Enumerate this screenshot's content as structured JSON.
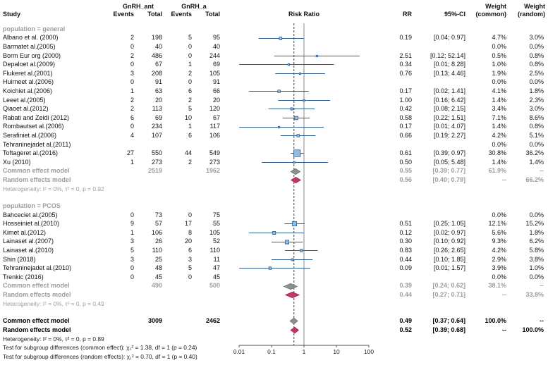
{
  "header": {
    "study": "Study",
    "group1": "GnRH_ant",
    "group2": "GnRH_a",
    "events": "Events",
    "total": "Total",
    "plot_title": "Risk Ratio",
    "rr": "RR",
    "ci": "95%-CI",
    "weight_top": "Weight",
    "weight_common": "(common)",
    "weight_random": "(random)"
  },
  "chart_data": {
    "type": "forest",
    "effect_measure": "Risk Ratio",
    "x_scale": "log10",
    "x_ticks": [
      "0.01",
      "0.1",
      "1",
      "10",
      "100"
    ],
    "x_range": [
      0.01,
      100
    ],
    "null_line": 1,
    "overall_line": 0.49,
    "colors": {
      "marker_fill": "#93bcdd",
      "marker_stroke": "#2d5c8f",
      "ci_line": "#2d5c8f",
      "diamond_common": "#8d9093",
      "diamond_common_stroke": "#6f7275",
      "diamond_random": "#c13866",
      "diamond_random_stroke": "#9d2750",
      "null_line": "#8a8a8a",
      "dashed_line": "#444444",
      "axis": "#555555",
      "muted_text": "#9d9d9d"
    },
    "groups": [
      {
        "label": "population = general",
        "studies": [
          {
            "name": "Albano et al. (2000)",
            "e1": "2",
            "n1": "198",
            "e2": "5",
            "n2": "95",
            "rr": 0.19,
            "lo": 0.04,
            "hi": 0.97,
            "rr_text": "0.19",
            "ci_text": "[0.04; 0.97]",
            "w_common": "4.7%",
            "w_random": "3.0%"
          },
          {
            "name": "Barmatet al.(2005)",
            "e1": "0",
            "n1": "40",
            "e2": "0",
            "n2": "40",
            "rr": null,
            "lo": null,
            "hi": null,
            "rr_text": "",
            "ci_text": "",
            "w_common": "0.0%",
            "w_random": "0.0%"
          },
          {
            "name": "Borm Eur org (2000)",
            "e1": "2",
            "n1": "486",
            "e2": "0",
            "n2": "244",
            "rr": 2.51,
            "lo": 0.12,
            "hi": 52.14,
            "rr_text": "2.51",
            "ci_text": "[0.12; 52.14]",
            "w_common": "0.5%",
            "w_random": "0.8%"
          },
          {
            "name": "Depaloet al.(2009)",
            "e1": "0",
            "n1": "67",
            "e2": "1",
            "n2": "69",
            "rr": 0.34,
            "lo": 0.01,
            "hi": 8.28,
            "rr_text": "0.34",
            "ci_text": "[0.01; 8.28]",
            "w_common": "1.0%",
            "w_random": "0.8%"
          },
          {
            "name": "Flukeret al.(2001)",
            "e1": "3",
            "n1": "208",
            "e2": "2",
            "n2": "105",
            "rr": 0.76,
            "lo": 0.13,
            "hi": 4.46,
            "rr_text": "0.76",
            "ci_text": "[0.13; 4.46]",
            "w_common": "1.9%",
            "w_random": "2.5%"
          },
          {
            "name": "Huirneet al.(2006)",
            "e1": "0",
            "n1": "91",
            "e2": "0",
            "n2": "91",
            "rr": null,
            "lo": null,
            "hi": null,
            "rr_text": "",
            "ci_text": "",
            "w_common": "0.0%",
            "w_random": "0.0%"
          },
          {
            "name": "Koichiet al.(2006)",
            "e1": "1",
            "n1": "63",
            "e2": "6",
            "n2": "66",
            "rr": 0.17,
            "lo": 0.02,
            "hi": 1.41,
            "rr_text": "0.17",
            "ci_text": "[0.02; 1.41]",
            "w_common": "4.1%",
            "w_random": "1.8%"
          },
          {
            "name": "Leeet al.(2005)",
            "e1": "2",
            "n1": "20",
            "e2": "2",
            "n2": "20",
            "rr": 1.0,
            "lo": 0.16,
            "hi": 6.42,
            "rr_text": "1.00",
            "ci_text": "[0.16; 6.42]",
            "w_common": "1.4%",
            "w_random": "2.3%"
          },
          {
            "name": "Qiaoet al.(2012)",
            "e1": "2",
            "n1": "113",
            "e2": "5",
            "n2": "120",
            "rr": 0.42,
            "lo": 0.08,
            "hi": 2.15,
            "rr_text": "0.42",
            "ci_text": "[0.08; 2.15]",
            "w_common": "3.4%",
            "w_random": "3.0%"
          },
          {
            "name": "Rabati and Zeidi (2012)",
            "e1": "6",
            "n1": "69",
            "e2": "10",
            "n2": "67",
            "rr": 0.58,
            "lo": 0.22,
            "hi": 1.51,
            "rr_text": "0.58",
            "ci_text": "[0.22; 1.51]",
            "w_common": "7.1%",
            "w_random": "8.6%"
          },
          {
            "name": "Rombautset al.(2006)",
            "e1": "0",
            "n1": "234",
            "e2": "1",
            "n2": "117",
            "rr": 0.17,
            "lo": 0.01,
            "hi": 4.07,
            "rr_text": "0.17",
            "ci_text": "[0.01; 4.07]",
            "w_common": "1.4%",
            "w_random": "0.8%"
          },
          {
            "name": "Serafiniet al.(2006)",
            "e1": "4",
            "n1": "107",
            "e2": "6",
            "n2": "106",
            "rr": 0.66,
            "lo": 0.19,
            "hi": 2.27,
            "rr_text": "0.66",
            "ci_text": "[0.19; 2.27]",
            "w_common": "4.2%",
            "w_random": "5.1%"
          },
          {
            "name": "Tehraninejadet al.(2011)",
            "e1": "",
            "n1": "",
            "e2": "",
            "n2": "",
            "rr": null,
            "lo": null,
            "hi": null,
            "rr_text": "",
            "ci_text": "",
            "w_common": "0.0%",
            "w_random": "0.0%"
          },
          {
            "name": "Toftageret al.(2016)",
            "e1": "27",
            "n1": "550",
            "e2": "44",
            "n2": "549",
            "rr": 0.61,
            "lo": 0.39,
            "hi": 0.97,
            "rr_text": "0.61",
            "ci_text": "[0.39; 0.97]",
            "w_common": "30.8%",
            "w_random": "36.2%"
          },
          {
            "name": "Xu (2010)",
            "e1": "1",
            "n1": "273",
            "e2": "2",
            "n2": "273",
            "rr": 0.5,
            "lo": 0.05,
            "hi": 5.48,
            "rr_text": "0.50",
            "ci_text": "[0.05; 5.48]",
            "w_common": "1.4%",
            "w_random": "1.4%"
          }
        ],
        "common": {
          "label": "Common effect model",
          "n1": "2519",
          "n2": "1962",
          "rr": 0.55,
          "lo": 0.39,
          "hi": 0.77,
          "rr_text": "0.55",
          "ci_text": "[0.39; 0.77]",
          "w_common": "61.9%",
          "w_random": "--"
        },
        "random": {
          "label": "Random effects model",
          "n1": "",
          "n2": "",
          "rr": 0.56,
          "lo": 0.4,
          "hi": 0.79,
          "rr_text": "0.56",
          "ci_text": "[0.40; 0.79]",
          "w_common": "--",
          "w_random": "66.2%"
        },
        "heterogeneity": "Heterogeneity: I² = 0%, τ² = 0, p = 0.92"
      },
      {
        "label": "population = PCOS",
        "studies": [
          {
            "name": "Bahceciet al.(2005)",
            "e1": "0",
            "n1": "73",
            "e2": "0",
            "n2": "75",
            "rr": null,
            "lo": null,
            "hi": null,
            "rr_text": "",
            "ci_text": "",
            "w_common": "0.0%",
            "w_random": "0.0%"
          },
          {
            "name": "Hosseiniet al.(2010)",
            "e1": "9",
            "n1": "57",
            "e2": "17",
            "n2": "55",
            "rr": 0.51,
            "lo": 0.25,
            "hi": 1.05,
            "rr_text": "0.51",
            "ci_text": "[0.25; 1.05]",
            "w_common": "12.1%",
            "w_random": "15.2%"
          },
          {
            "name": "Kimet al.(2012)",
            "e1": "1",
            "n1": "106",
            "e2": "8",
            "n2": "105",
            "rr": 0.12,
            "lo": 0.02,
            "hi": 0.97,
            "rr_text": "0.12",
            "ci_text": "[0.02; 0.97]",
            "w_common": "5.6%",
            "w_random": "1.8%"
          },
          {
            "name": "Lainaset al.(2007)",
            "e1": "3",
            "n1": "26",
            "e2": "20",
            "n2": "52",
            "rr": 0.3,
            "lo": 0.1,
            "hi": 0.92,
            "rr_text": "0.30",
            "ci_text": "[0.10; 0.92]",
            "w_common": "9.3%",
            "w_random": "6.2%"
          },
          {
            "name": "Lainaset al.(2010)",
            "e1": "5",
            "n1": "110",
            "e2": "6",
            "n2": "110",
            "rr": 0.83,
            "lo": 0.26,
            "hi": 2.65,
            "rr_text": "0.83",
            "ci_text": "[0.26; 2.65]",
            "w_common": "4.2%",
            "w_random": "5.8%"
          },
          {
            "name": "Shin (2018)",
            "e1": "3",
            "n1": "25",
            "e2": "3",
            "n2": "11",
            "rr": 0.44,
            "lo": 0.1,
            "hi": 1.85,
            "rr_text": "0.44",
            "ci_text": "[0.10; 1.85]",
            "w_common": "2.9%",
            "w_random": "3.8%"
          },
          {
            "name": "Tehraninejadet al.(2010)",
            "e1": "0",
            "n1": "48",
            "e2": "5",
            "n2": "47",
            "rr": 0.09,
            "lo": 0.01,
            "hi": 1.57,
            "rr_text": "0.09",
            "ci_text": "[0.01; 1.57]",
            "w_common": "3.9%",
            "w_random": "1.0%"
          },
          {
            "name": "Trenkic (2016)",
            "e1": "0",
            "n1": "45",
            "e2": "0",
            "n2": "45",
            "rr": null,
            "lo": null,
            "hi": null,
            "rr_text": "",
            "ci_text": "",
            "w_common": "0.0%",
            "w_random": "0.0%"
          }
        ],
        "common": {
          "label": "Common effect model",
          "n1": "490",
          "n2": "500",
          "rr": 0.39,
          "lo": 0.24,
          "hi": 0.62,
          "rr_text": "0.39",
          "ci_text": "[0.24; 0.62]",
          "w_common": "38.1%",
          "w_random": "--"
        },
        "random": {
          "label": "Random effects model",
          "n1": "",
          "n2": "",
          "rr": 0.44,
          "lo": 0.27,
          "hi": 0.71,
          "rr_text": "0.44",
          "ci_text": "[0.27; 0.71]",
          "w_common": "--",
          "w_random": "33.8%"
        },
        "heterogeneity": "Heterogeneity: I² = 0%, τ² = 0, p = 0.49"
      }
    ],
    "overall": {
      "common": {
        "label": "Common effect model",
        "n1": "3009",
        "n2": "2462",
        "rr": 0.49,
        "lo": 0.37,
        "hi": 0.64,
        "rr_text": "0.49",
        "ci_text": "[0.37; 0.64]",
        "w_common": "100.0%",
        "w_random": "--"
      },
      "random": {
        "label": "Random effects model",
        "n1": "",
        "n2": "",
        "rr": 0.52,
        "lo": 0.39,
        "hi": 0.68,
        "rr_text": "0.52",
        "ci_text": "[0.39; 0.68]",
        "w_common": "--",
        "w_random": "100.0%"
      },
      "heterogeneity": "Heterogeneity: I² = 0%, τ² = 0, p = 0.89"
    },
    "footnotes": [
      "Test for subgroup differences (common effect): χ₁² = 1.38, df = 1 (p = 0.24)",
      "Test for subgroup differences (random effects): χ₁² = 0.70, df = 1 (p = 0.40)"
    ]
  }
}
